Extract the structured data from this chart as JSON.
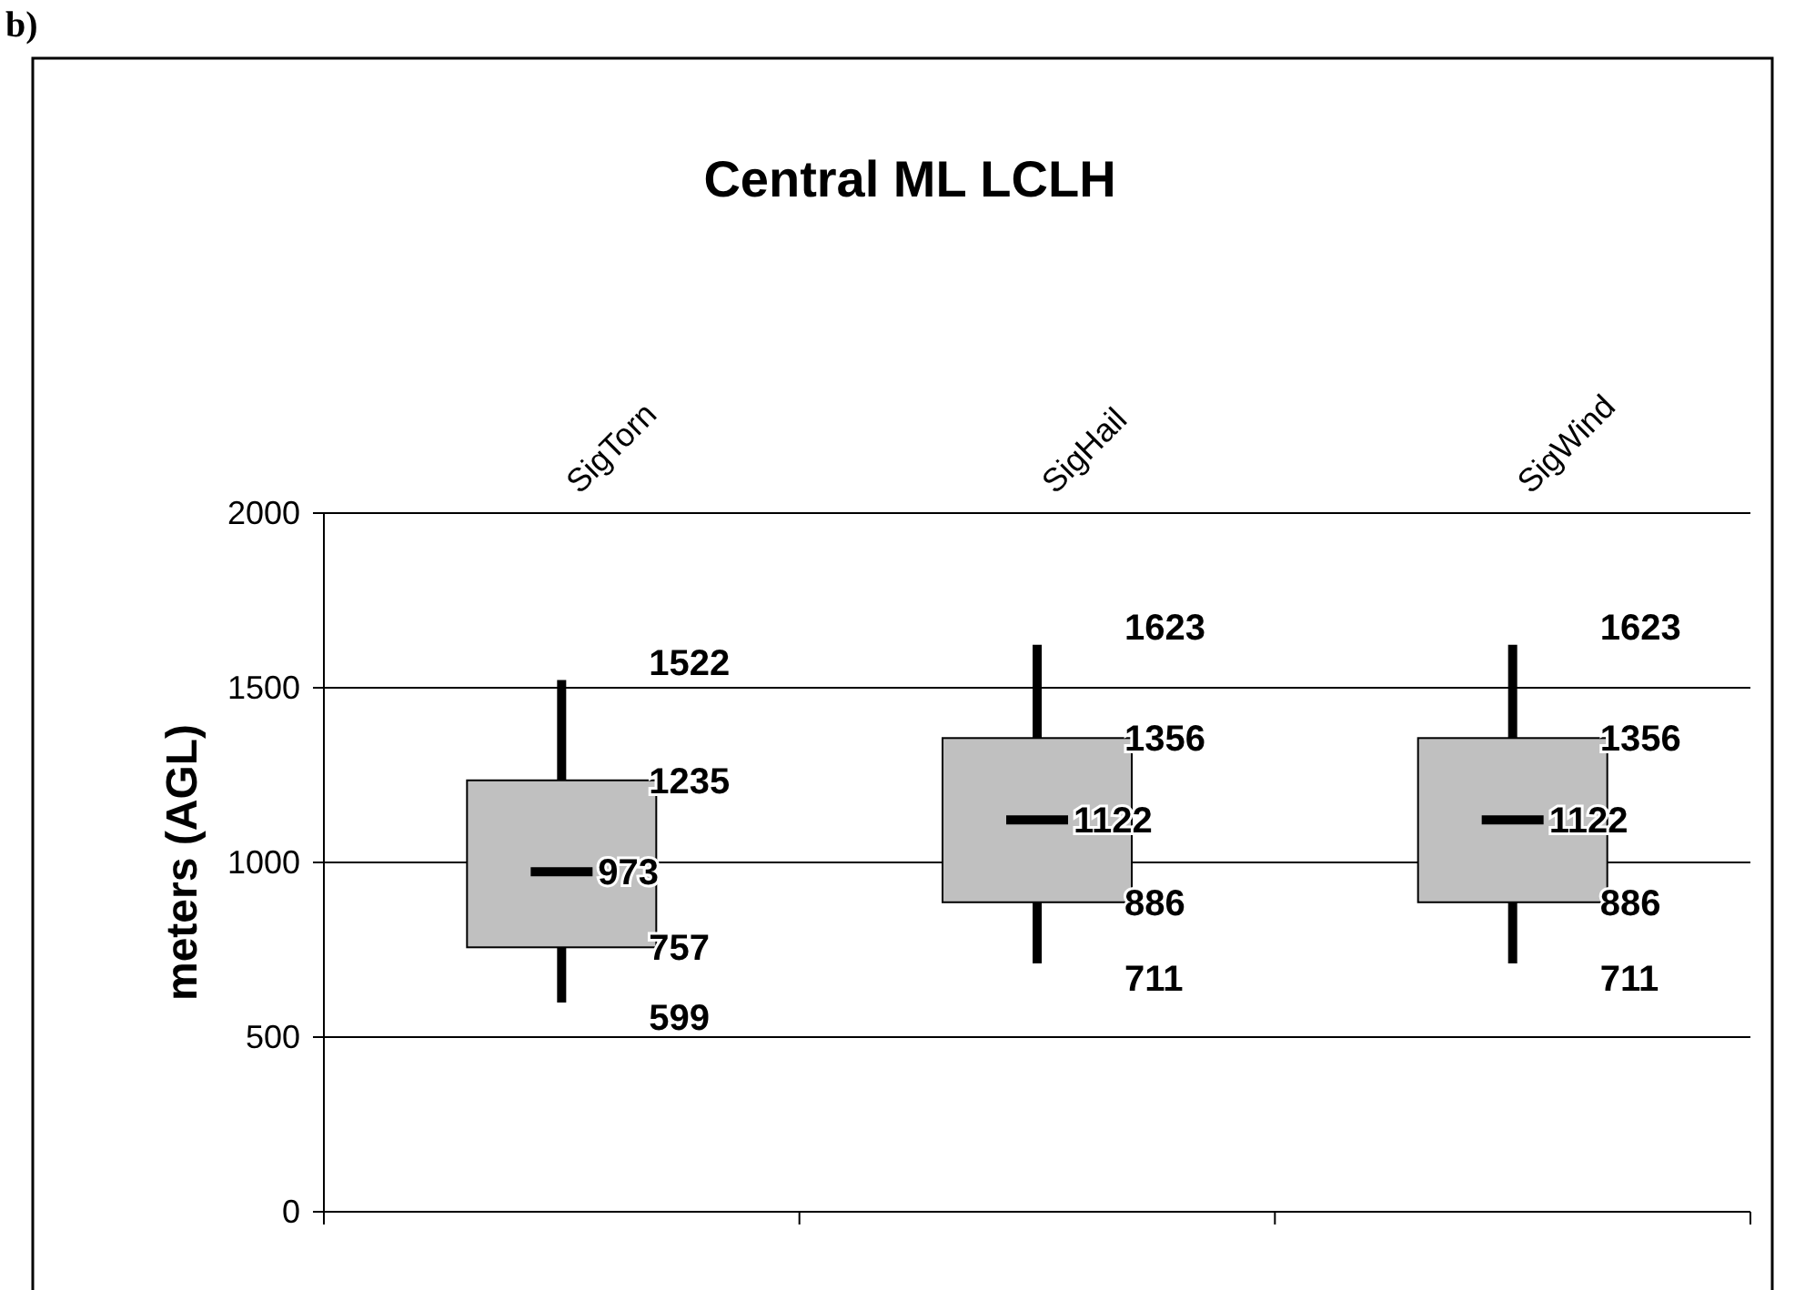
{
  "chart_data": {
    "type": "box",
    "title": "Central ML LCLH",
    "ylabel": "meters (AGL)",
    "annotations": [
      "b)",
      "1522",
      {
        "text": "1235",
        "x": "SigTorn",
        "y": 1235
      },
      {
        "text": "973",
        "x": "SigTorn",
        "y": 973
      },
      {
        "text": "757",
        "x": "SigTorn",
        "y": 757
      },
      "599",
      "1623",
      {
        "text": "1356",
        "x": "SigHail",
        "y": 1356
      },
      {
        "text": "1122",
        "x": "SigHail",
        "y": 1122
      },
      {
        "text": "886",
        "x": "SigHail",
        "y": 886
      },
      "711",
      "1623",
      {
        "text": "1356",
        "x": "SigWind",
        "y": 1356
      },
      {
        "text": "1122",
        "x": "SigWind",
        "y": 1122
      },
      {
        "text": "886",
        "x": "SigWind",
        "y": 886
      },
      "711"
    ],
    "categories": [
      "SigTorn",
      "SigHail",
      "SigWind"
    ],
    "series": [
      {
        "color": "#c0c0c0",
        "boxes": [
          {
            "low": 599,
            "q1": 757,
            "median": 973,
            "q3": 1235,
            "high": 1522
          },
          {
            "low": 711,
            "q1": 886,
            "median": 1122,
            "q3": 1356,
            "high": 1623
          },
          {
            "low": 711,
            "q1": 886,
            "median": 1122,
            "q3": 1356,
            "high": 1623
          }
        ]
      }
    ],
    "ylim": [
      0,
      2000
    ],
    "yticks": [
      0,
      500,
      1000,
      1500,
      2000
    ],
    "grid": "y"
  }
}
